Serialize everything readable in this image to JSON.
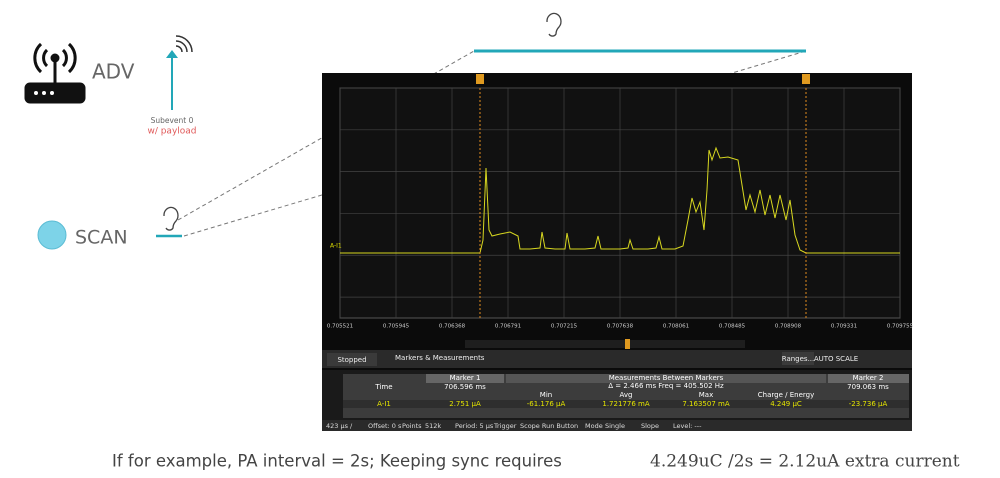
{
  "left": {
    "adv_label": "ADV",
    "subevent": "Subevent 0",
    "payload": "w/ payload",
    "scan_label": "SCAN"
  },
  "scope": {
    "x_labels": [
      "0.705521",
      "0.705945",
      "0.706368",
      "0.706791",
      "0.707215",
      "0.707638",
      "0.708061",
      "0.708485",
      "0.708908",
      "0.709331",
      "0.709755"
    ],
    "channel": "A-I1",
    "toolbar": {
      "status": "Stopped",
      "tab": "Markers & Measurements",
      "ranges": "Ranges...",
      "auto_scale": "AUTO SCALE"
    },
    "table": {
      "marker1": "Marker 1",
      "between": "Measurements Between Markers",
      "marker2": "Marker 2",
      "time_label": "Time",
      "m1_time": "706.596 ms",
      "delta": "Δ = 2.466 ms   Freq = 405.502 Hz",
      "m2_time": "709.063 ms",
      "col_min": "Min",
      "col_avg": "Avg",
      "col_max": "Max",
      "col_charge": "Charge / Energy",
      "row_label": "A-I1",
      "m1_val": "2.751 µA",
      "min": "-61.176 µA",
      "avg": "1.721776 mA",
      "max": "7.163507 mA",
      "charge": "4.249 µC",
      "m2_val": "-23.736 µA"
    },
    "bottom_bar": {
      "range": "423 µs /",
      "offset": "Offset: 0 s",
      "points_label": "Points",
      "points": "512k",
      "period": "Period: 5 µs",
      "trigger": "Trigger",
      "trigger_val": "Scope Run Button",
      "mode_label": "Mode",
      "mode": "Single",
      "slope": "Slope",
      "level": "Level: ---"
    }
  },
  "caption": {
    "text": "If for example, PA interval = 2s; Keeping sync requires",
    "formula": "4.249uC /2s = 2.12uA extra current"
  }
}
